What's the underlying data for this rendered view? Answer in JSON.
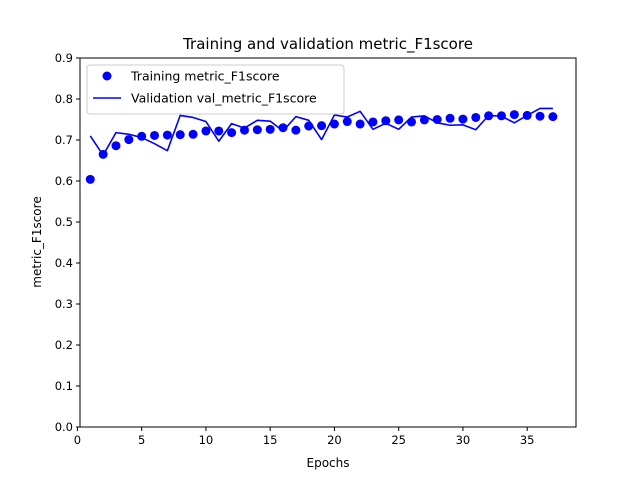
{
  "chart_data": {
    "type": "line",
    "title": "Training and validation metric_F1score",
    "xlabel": "Epochs",
    "ylabel": "metric_F1score",
    "xlim": [
      0.2,
      38.8
    ],
    "ylim": [
      0.0,
      0.9
    ],
    "xticks": [
      0,
      5,
      10,
      15,
      20,
      25,
      30,
      35
    ],
    "yticks": [
      0.0,
      0.1,
      0.2,
      0.3,
      0.4,
      0.5,
      0.6,
      0.7,
      0.8,
      0.9
    ],
    "grid": false,
    "legend_position": "top-left",
    "x": [
      1,
      2,
      3,
      4,
      5,
      6,
      7,
      8,
      9,
      10,
      11,
      12,
      13,
      14,
      15,
      16,
      17,
      18,
      19,
      20,
      21,
      22,
      23,
      24,
      25,
      26,
      27,
      28,
      29,
      30,
      31,
      32,
      33,
      34,
      35,
      36,
      37
    ],
    "series": [
      {
        "name": "Training metric_F1score",
        "style": "points",
        "color": "#0000ff",
        "values": [
          0.604,
          0.665,
          0.686,
          0.701,
          0.709,
          0.711,
          0.712,
          0.713,
          0.714,
          0.722,
          0.722,
          0.718,
          0.724,
          0.725,
          0.726,
          0.73,
          0.724,
          0.734,
          0.735,
          0.739,
          0.745,
          0.739,
          0.744,
          0.747,
          0.749,
          0.744,
          0.749,
          0.75,
          0.753,
          0.751,
          0.755,
          0.759,
          0.759,
          0.762,
          0.76,
          0.758,
          0.757
        ]
      },
      {
        "name": "Validation val_metric_F1score",
        "style": "line",
        "color": "#0000ff",
        "values": [
          0.71,
          0.663,
          0.718,
          0.714,
          0.706,
          0.691,
          0.674,
          0.76,
          0.755,
          0.745,
          0.697,
          0.74,
          0.729,
          0.748,
          0.746,
          0.722,
          0.757,
          0.748,
          0.701,
          0.761,
          0.756,
          0.77,
          0.726,
          0.741,
          0.726,
          0.756,
          0.759,
          0.742,
          0.736,
          0.737,
          0.725,
          0.76,
          0.758,
          0.742,
          0.76,
          0.777,
          0.777
        ]
      }
    ]
  }
}
